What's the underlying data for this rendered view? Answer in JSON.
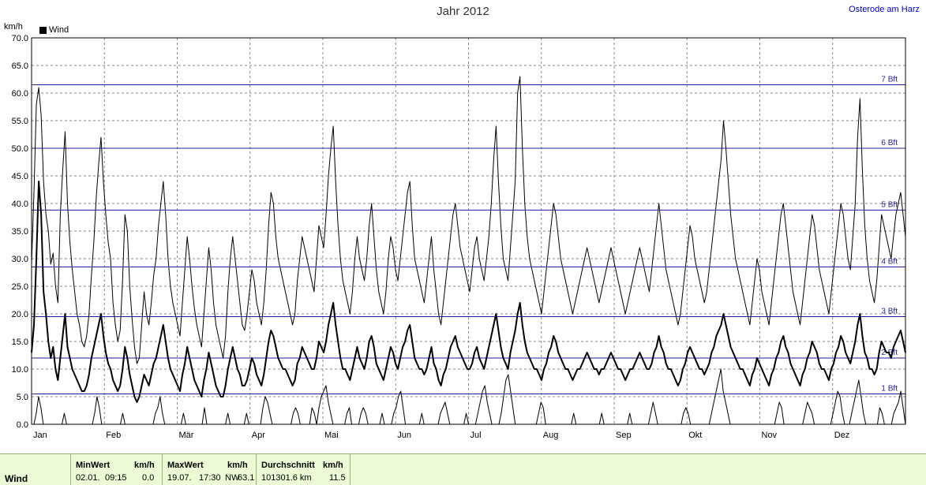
{
  "header": {
    "title": "Jahr 2012",
    "location": "Osterode am Harz",
    "y_unit": "km/h"
  },
  "legend": {
    "label": "Wind"
  },
  "chart_data": {
    "type": "line",
    "ylim": [
      0,
      70
    ],
    "yticks": [
      "0.0",
      "5.0",
      "10.0",
      "15.0",
      "20.0",
      "25.0",
      "30.0",
      "35.0",
      "40.0",
      "45.0",
      "50.0",
      "55.0",
      "60.0",
      "65.0",
      "70.0"
    ],
    "months": [
      "Jan",
      "Feb",
      "Mär",
      "Apr",
      "Mai",
      "Jun",
      "Jul",
      "Aug",
      "Sep",
      "Okt",
      "Nov",
      "Dez"
    ],
    "grid": true,
    "beaufort_lines": [
      {
        "label": "1 Bft",
        "value": 5.5
      },
      {
        "label": "2 Bft",
        "value": 12
      },
      {
        "label": "3 Bft",
        "value": 19.5
      },
      {
        "label": "4 Bft",
        "value": 28.5
      },
      {
        "label": "5 Bft",
        "value": 38.8
      },
      {
        "label": "6 Bft",
        "value": 50
      },
      {
        "label": "7 Bft",
        "value": 61.5
      }
    ],
    "series": [
      {
        "name": "Wind",
        "role": "max",
        "values": [
          29,
          42,
          58,
          61,
          56,
          44,
          38,
          35,
          29,
          31,
          25,
          22,
          38,
          46,
          53,
          40,
          33,
          28,
          24,
          20,
          18,
          15,
          14,
          16,
          20,
          27,
          33,
          41,
          47,
          52,
          44,
          38,
          33,
          30,
          22,
          18,
          15,
          17,
          26,
          38,
          35,
          25,
          19,
          14,
          11,
          12,
          18,
          24,
          20,
          18,
          22,
          27,
          30,
          36,
          40,
          44,
          38,
          30,
          25,
          22,
          20,
          18,
          16,
          22,
          28,
          34,
          30,
          25,
          21,
          18,
          16,
          14,
          20,
          26,
          32,
          28,
          22,
          18,
          16,
          14,
          12,
          16,
          24,
          30,
          34,
          30,
          26,
          22,
          18,
          17,
          20,
          24,
          28,
          26,
          22,
          20,
          18,
          22,
          28,
          36,
          42,
          40,
          34,
          30,
          28,
          26,
          24,
          22,
          20,
          18,
          20,
          26,
          30,
          34,
          32,
          30,
          28,
          26,
          24,
          30,
          36,
          34,
          32,
          38,
          45,
          50,
          54,
          44,
          36,
          30,
          26,
          24,
          22,
          20,
          24,
          30,
          34,
          30,
          28,
          26,
          30,
          36,
          40,
          34,
          28,
          24,
          22,
          20,
          24,
          30,
          34,
          32,
          28,
          26,
          30,
          34,
          38,
          42,
          44,
          36,
          30,
          28,
          26,
          24,
          22,
          26,
          30,
          34,
          28,
          24,
          20,
          18,
          22,
          26,
          30,
          34,
          38,
          40,
          36,
          32,
          30,
          28,
          26,
          24,
          28,
          32,
          34,
          30,
          28,
          26,
          30,
          34,
          40,
          48,
          54,
          44,
          36,
          30,
          28,
          26,
          32,
          38,
          44,
          60,
          63,
          50,
          40,
          34,
          30,
          28,
          26,
          24,
          22,
          20,
          24,
          28,
          32,
          36,
          40,
          38,
          34,
          30,
          28,
          26,
          24,
          22,
          20,
          22,
          24,
          26,
          28,
          30,
          32,
          30,
          28,
          26,
          24,
          22,
          24,
          26,
          28,
          30,
          32,
          30,
          28,
          26,
          24,
          22,
          20,
          22,
          24,
          26,
          28,
          30,
          32,
          30,
          28,
          26,
          24,
          28,
          32,
          36,
          40,
          36,
          32,
          28,
          26,
          24,
          22,
          20,
          18,
          20,
          24,
          28,
          32,
          36,
          34,
          30,
          28,
          26,
          24,
          22,
          24,
          28,
          32,
          36,
          40,
          44,
          48,
          55,
          50,
          44,
          38,
          34,
          30,
          28,
          26,
          24,
          22,
          20,
          18,
          22,
          26,
          30,
          28,
          24,
          22,
          20,
          18,
          22,
          26,
          30,
          34,
          38,
          40,
          36,
          32,
          28,
          24,
          22,
          20,
          18,
          22,
          26,
          30,
          34,
          38,
          36,
          32,
          28,
          26,
          24,
          22,
          20,
          24,
          28,
          32,
          36,
          40,
          38,
          34,
          30,
          28,
          34,
          40,
          52,
          59,
          46,
          36,
          30,
          26,
          24,
          22,
          26,
          32,
          38,
          36,
          34,
          32,
          30,
          34,
          38,
          40,
          42,
          38,
          34
        ]
      },
      {
        "name": "Wind",
        "role": "mean",
        "values": [
          13,
          18,
          30,
          44,
          38,
          24,
          20,
          15,
          12,
          14,
          10,
          8,
          12,
          16,
          20,
          14,
          12,
          10,
          9,
          8,
          7,
          6,
          6,
          7,
          9,
          12,
          14,
          16,
          18,
          20,
          16,
          13,
          11,
          10,
          8,
          7,
          6,
          7,
          10,
          14,
          12,
          9,
          7,
          5,
          4,
          5,
          7,
          9,
          8,
          7,
          9,
          11,
          12,
          14,
          16,
          18,
          15,
          12,
          10,
          9,
          8,
          7,
          6,
          9,
          11,
          14,
          12,
          10,
          8,
          7,
          6,
          5,
          8,
          10,
          13,
          11,
          9,
          7,
          6,
          5,
          5,
          7,
          10,
          12,
          14,
          12,
          10,
          9,
          7,
          7,
          8,
          10,
          12,
          11,
          9,
          8,
          7,
          9,
          12,
          15,
          17,
          16,
          14,
          12,
          11,
          10,
          10,
          9,
          8,
          7,
          8,
          11,
          12,
          14,
          13,
          12,
          11,
          10,
          10,
          12,
          15,
          14,
          13,
          15,
          18,
          20,
          22,
          18,
          15,
          12,
          10,
          10,
          9,
          8,
          10,
          12,
          14,
          12,
          11,
          10,
          12,
          15,
          16,
          14,
          11,
          10,
          9,
          8,
          10,
          12,
          14,
          13,
          11,
          10,
          12,
          14,
          15,
          17,
          18,
          15,
          12,
          11,
          10,
          10,
          9,
          10,
          12,
          14,
          11,
          10,
          8,
          7,
          9,
          10,
          12,
          14,
          15,
          16,
          14,
          13,
          12,
          11,
          10,
          10,
          11,
          13,
          14,
          12,
          11,
          10,
          12,
          14,
          16,
          18,
          20,
          17,
          14,
          12,
          11,
          10,
          13,
          15,
          17,
          20,
          22,
          18,
          15,
          13,
          12,
          11,
          10,
          10,
          9,
          8,
          10,
          11,
          13,
          14,
          16,
          15,
          13,
          12,
          11,
          10,
          10,
          9,
          8,
          9,
          10,
          10,
          11,
          12,
          13,
          12,
          11,
          10,
          10,
          9,
          10,
          10,
          11,
          12,
          13,
          12,
          11,
          10,
          10,
          9,
          8,
          9,
          10,
          10,
          11,
          12,
          13,
          12,
          11,
          10,
          10,
          11,
          13,
          14,
          16,
          14,
          13,
          11,
          10,
          10,
          9,
          8,
          7,
          8,
          10,
          11,
          13,
          14,
          13,
          12,
          11,
          10,
          10,
          9,
          10,
          11,
          13,
          14,
          16,
          17,
          18,
          20,
          18,
          16,
          14,
          13,
          12,
          11,
          10,
          10,
          9,
          8,
          7,
          9,
          10,
          12,
          11,
          10,
          9,
          8,
          7,
          9,
          10,
          12,
          13,
          15,
          16,
          14,
          13,
          11,
          10,
          9,
          8,
          7,
          9,
          10,
          12,
          13,
          15,
          14,
          13,
          11,
          10,
          10,
          9,
          8,
          10,
          11,
          13,
          14,
          16,
          15,
          13,
          12,
          11,
          13,
          15,
          18,
          20,
          16,
          13,
          12,
          10,
          10,
          9,
          10,
          13,
          15,
          14,
          13,
          13,
          12,
          14,
          15,
          16,
          17,
          15,
          13
        ]
      },
      {
        "name": "Wind",
        "role": "min",
        "values": [
          0,
          0,
          2,
          5,
          3,
          0,
          0,
          0,
          0,
          0,
          0,
          0,
          0,
          0,
          2,
          0,
          0,
          0,
          0,
          0,
          0,
          0,
          0,
          0,
          0,
          0,
          0,
          2,
          5,
          3,
          0,
          0,
          0,
          0,
          0,
          0,
          0,
          0,
          0,
          2,
          0,
          0,
          0,
          0,
          0,
          0,
          0,
          0,
          0,
          0,
          0,
          0,
          0,
          2,
          3,
          5,
          2,
          0,
          0,
          0,
          0,
          0,
          0,
          0,
          0,
          2,
          0,
          0,
          0,
          0,
          0,
          0,
          0,
          0,
          3,
          0,
          0,
          0,
          0,
          0,
          0,
          0,
          0,
          0,
          2,
          0,
          0,
          0,
          0,
          0,
          0,
          0,
          2,
          0,
          0,
          0,
          0,
          0,
          0,
          3,
          5,
          4,
          2,
          0,
          0,
          0,
          0,
          0,
          0,
          0,
          0,
          0,
          2,
          3,
          2,
          0,
          0,
          0,
          0,
          0,
          3,
          2,
          0,
          3,
          5,
          6,
          7,
          4,
          2,
          0,
          0,
          0,
          0,
          0,
          0,
          2,
          3,
          0,
          0,
          0,
          0,
          2,
          3,
          2,
          0,
          0,
          0,
          0,
          0,
          0,
          2,
          0,
          0,
          0,
          0,
          2,
          3,
          5,
          6,
          3,
          0,
          0,
          0,
          0,
          0,
          0,
          0,
          2,
          0,
          0,
          0,
          0,
          0,
          0,
          0,
          2,
          3,
          4,
          2,
          0,
          0,
          0,
          0,
          0,
          0,
          0,
          2,
          0,
          0,
          0,
          0,
          2,
          4,
          6,
          7,
          4,
          2,
          0,
          0,
          0,
          0,
          2,
          5,
          8,
          9,
          6,
          3,
          0,
          0,
          0,
          0,
          0,
          0,
          0,
          0,
          0,
          0,
          2,
          4,
          3,
          0,
          0,
          0,
          0,
          0,
          0,
          0,
          0,
          0,
          0,
          0,
          0,
          2,
          0,
          0,
          0,
          0,
          0,
          0,
          0,
          0,
          0,
          0,
          0,
          2,
          0,
          0,
          0,
          0,
          0,
          0,
          0,
          0,
          0,
          0,
          0,
          2,
          0,
          0,
          0,
          0,
          0,
          0,
          0,
          0,
          2,
          4,
          2,
          0,
          0,
          0,
          0,
          0,
          0,
          0,
          0,
          0,
          0,
          0,
          2,
          3,
          2,
          0,
          0,
          0,
          0,
          0,
          0,
          0,
          0,
          0,
          2,
          4,
          6,
          8,
          10,
          6,
          4,
          2,
          0,
          0,
          0,
          0,
          0,
          0,
          0,
          0,
          0,
          0,
          0,
          0,
          0,
          0,
          0,
          0,
          0,
          0,
          0,
          0,
          2,
          4,
          3,
          0,
          0,
          0,
          0,
          0,
          0,
          0,
          0,
          0,
          2,
          4,
          3,
          2,
          0,
          0,
          0,
          0,
          0,
          0,
          0,
          0,
          2,
          4,
          6,
          5,
          2,
          0,
          0,
          0,
          2,
          4,
          6,
          8,
          5,
          2,
          0,
          0,
          0,
          0,
          0,
          0,
          3,
          2,
          0,
          0,
          0,
          0,
          2,
          3,
          4,
          6,
          3,
          0
        ]
      }
    ]
  },
  "footer": {
    "row_label": "Wind",
    "min": {
      "header": "MinWert",
      "unit": "km/h",
      "date": "02.01.",
      "time": "09:15",
      "value": "0.0"
    },
    "max": {
      "header": "MaxWert",
      "unit": "km/h",
      "date": "19.07.",
      "time": "17:30",
      "dir": "NW",
      "value": "63.1"
    },
    "avg": {
      "header": "Durchschnitt",
      "unit": "km/h",
      "distance": "101301.6 km",
      "value": "11.5"
    }
  }
}
